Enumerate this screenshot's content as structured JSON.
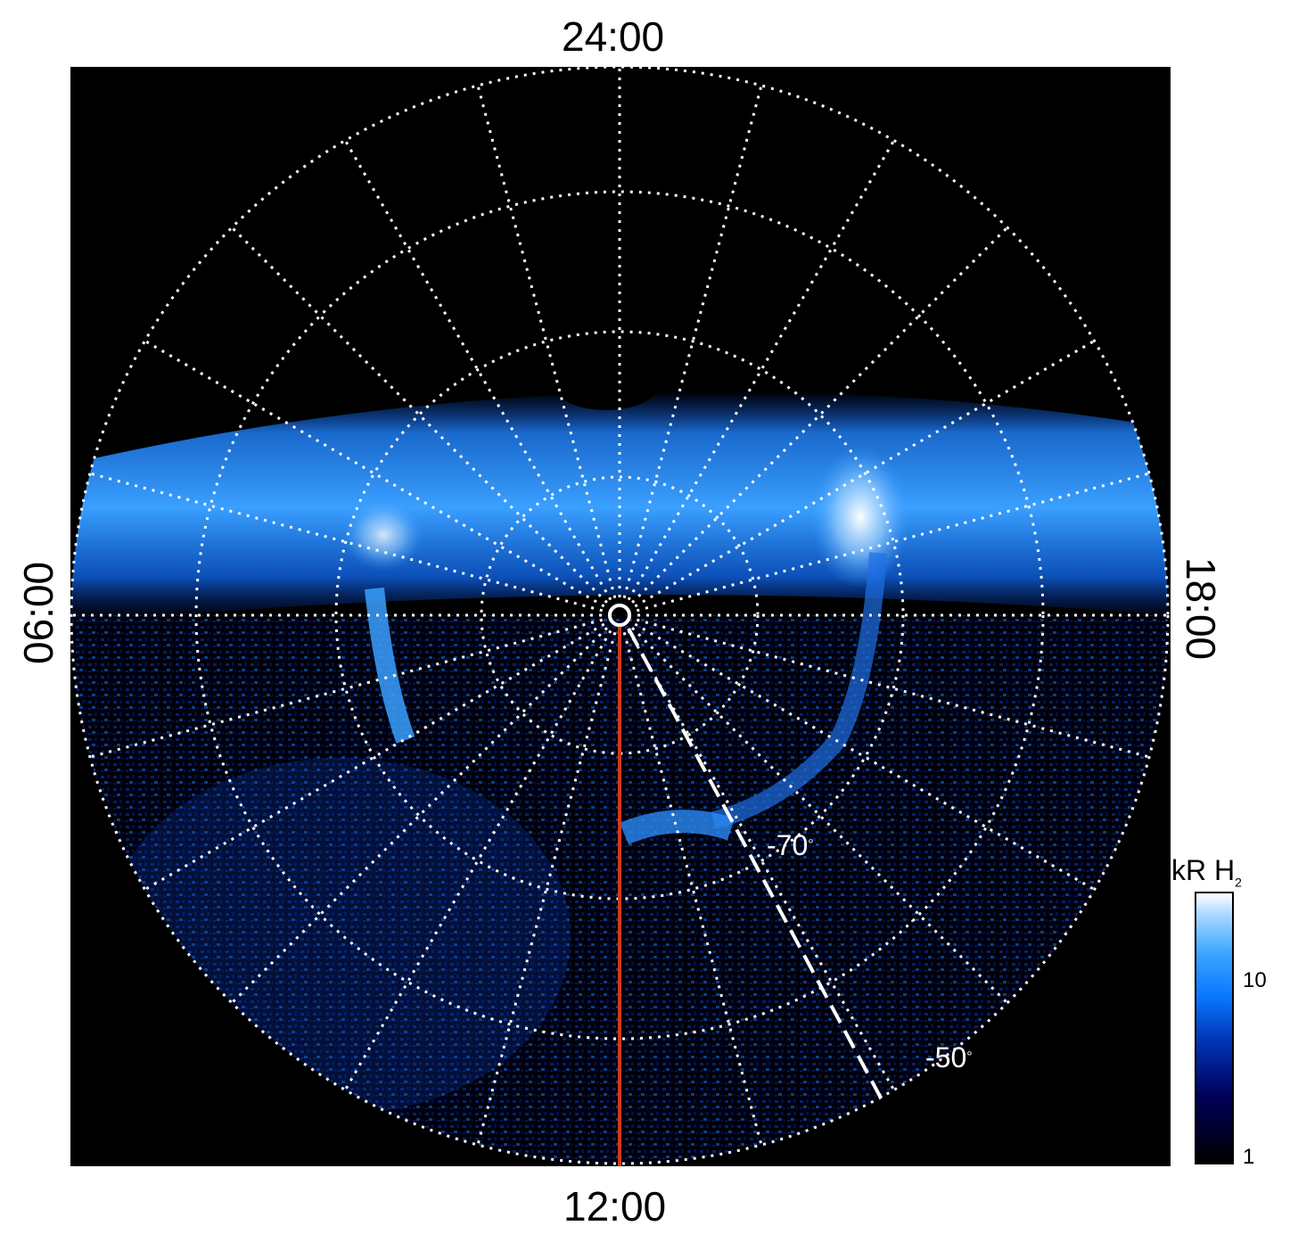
{
  "time_labels": {
    "top": "24:00",
    "bottom": "12:00",
    "left": "06:00",
    "right": "18:00"
  },
  "latitude_labels": {
    "inner": "-70",
    "outer": "-50",
    "degree_symbol": "°"
  },
  "colorbar": {
    "unit_prefix": "kR H",
    "unit_subscript": "2",
    "ticks": [
      "10",
      "1"
    ],
    "scale": "log"
  },
  "colors": {
    "background": "#000000",
    "grid": "#ffffff",
    "reference_meridian": "#d13a1c",
    "aurora_low": "#00005a",
    "aurora_mid": "#0a78ff",
    "aurora_high": "#ffffff"
  }
}
